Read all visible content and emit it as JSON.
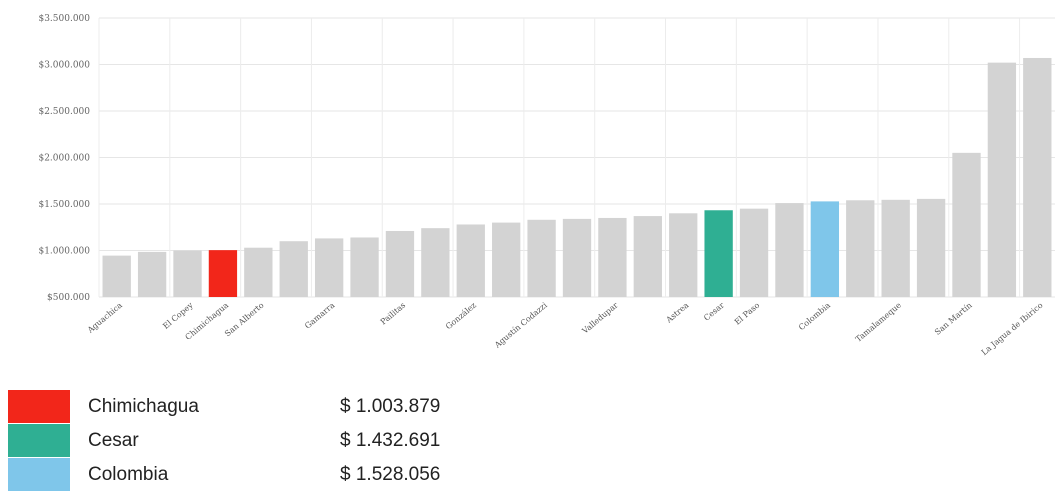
{
  "chart_data": {
    "type": "bar",
    "categories": [
      "Aguachica",
      "",
      "El Copey",
      "Chimichagua",
      "San Alberto",
      "",
      "Gamarra",
      "",
      "Pailitas",
      "",
      "González",
      "",
      "Agustín Codazzi",
      "",
      "Valledupar",
      "",
      "Astrea",
      "Cesar",
      "El Paso",
      "",
      "Colombia",
      "",
      "Tamalameque",
      "",
      "San Martín",
      "",
      "La Jagua de Ibirico"
    ],
    "values": [
      945000,
      985000,
      1000000,
      1003879,
      1030000,
      1100000,
      1130000,
      1140000,
      1210000,
      1240000,
      1280000,
      1300000,
      1330000,
      1340000,
      1350000,
      1370000,
      1400000,
      1432691,
      1450000,
      1510000,
      1528056,
      1540000,
      1545000,
      1555000,
      2050000,
      3020000,
      3070000
    ],
    "highlight_colors": {
      "3": "#f2261a",
      "17": "#2faf93",
      "20": "#7fc6ea"
    },
    "bar_color": "#d3d3d3",
    "ylim": [
      500000,
      3500000
    ],
    "y_ticks": [
      "$500.000",
      "$1.000.000",
      "$1.500.000",
      "$2.000.000",
      "$2.500.000",
      "$3.000.000",
      "$3.500.000"
    ],
    "y_tick_values": [
      500000,
      1000000,
      1500000,
      2000000,
      2500000,
      3000000,
      3500000
    ],
    "grid": true
  },
  "legend": [
    {
      "label": "Chimichagua",
      "value": "$ 1.003.879",
      "color": "#f2261a"
    },
    {
      "label": "Cesar",
      "value": "$ 1.432.691",
      "color": "#2faf93"
    },
    {
      "label": "Colombia",
      "value": "$ 1.528.056",
      "color": "#7fc6ea"
    }
  ]
}
